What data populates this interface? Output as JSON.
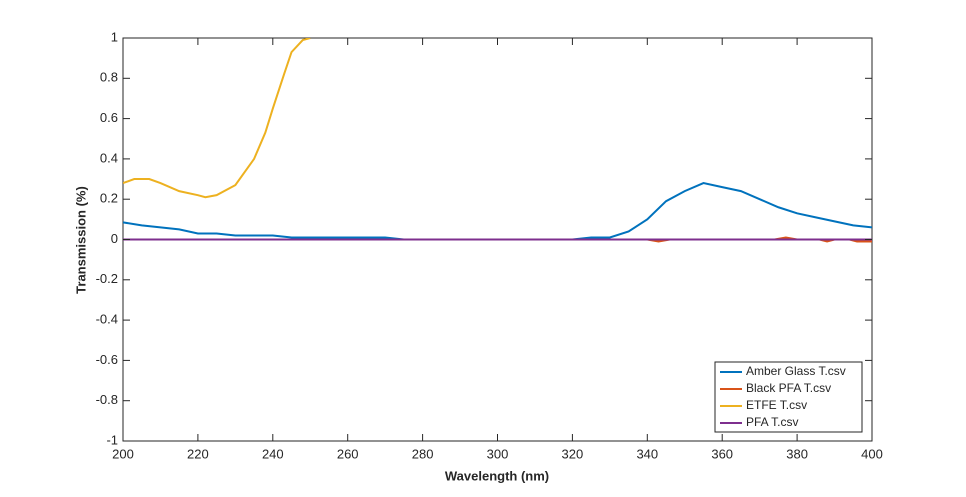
{
  "chart_data": {
    "type": "line",
    "x_label": "Wavelength (nm)",
    "y_label": "Transmission (%)",
    "xlim": [
      200,
      400
    ],
    "ylim": [
      -1,
      1
    ],
    "xticks": [
      200,
      220,
      240,
      260,
      280,
      300,
      320,
      340,
      360,
      380,
      400
    ],
    "yticks": [
      -1,
      -0.8,
      -0.6,
      -0.4,
      -0.2,
      0,
      0.2,
      0.4,
      0.6,
      0.8,
      1
    ],
    "grid": false,
    "legend_position": "southeast",
    "series": [
      {
        "name": "Amber Glass T.csv",
        "color": "#0072bd",
        "x": [
          200,
          205,
          210,
          215,
          220,
          225,
          230,
          240,
          245,
          250,
          270,
          275,
          290,
          320,
          325,
          330,
          335,
          340,
          345,
          350,
          355,
          360,
          365,
          370,
          375,
          380,
          385,
          390,
          395,
          400
        ],
        "values": [
          0.085,
          0.07,
          0.06,
          0.05,
          0.03,
          0.03,
          0.02,
          0.02,
          0.01,
          0.01,
          0.01,
          0,
          0,
          0,
          0.01,
          0.01,
          0.04,
          0.1,
          0.19,
          0.24,
          0.28,
          0.26,
          0.24,
          0.2,
          0.16,
          0.13,
          0.11,
          0.09,
          0.07,
          0.06
        ]
      },
      {
        "name": "Black PFA T.csv",
        "color": "#d95319",
        "x": [
          200,
          340,
          343,
          346,
          374,
          377,
          380,
          386,
          388,
          390,
          394,
          396,
          400
        ],
        "values": [
          0,
          0,
          -0.01,
          0,
          0,
          0.01,
          0,
          0,
          -0.01,
          0,
          0,
          -0.01,
          -0.01
        ]
      },
      {
        "name": "ETFE T.csv",
        "color": "#edb120",
        "x": [
          200,
          203,
          207,
          210,
          215,
          220,
          222,
          225,
          230,
          235,
          238,
          240,
          243,
          245,
          248,
          250
        ],
        "values": [
          0.28,
          0.3,
          0.3,
          0.28,
          0.24,
          0.22,
          0.21,
          0.22,
          0.27,
          0.4,
          0.53,
          0.65,
          0.82,
          0.93,
          0.99,
          1.0
        ]
      },
      {
        "name": "PFA T.csv",
        "color": "#7e2f8e",
        "x": [
          200,
          400
        ],
        "values": [
          0,
          0
        ]
      }
    ]
  }
}
